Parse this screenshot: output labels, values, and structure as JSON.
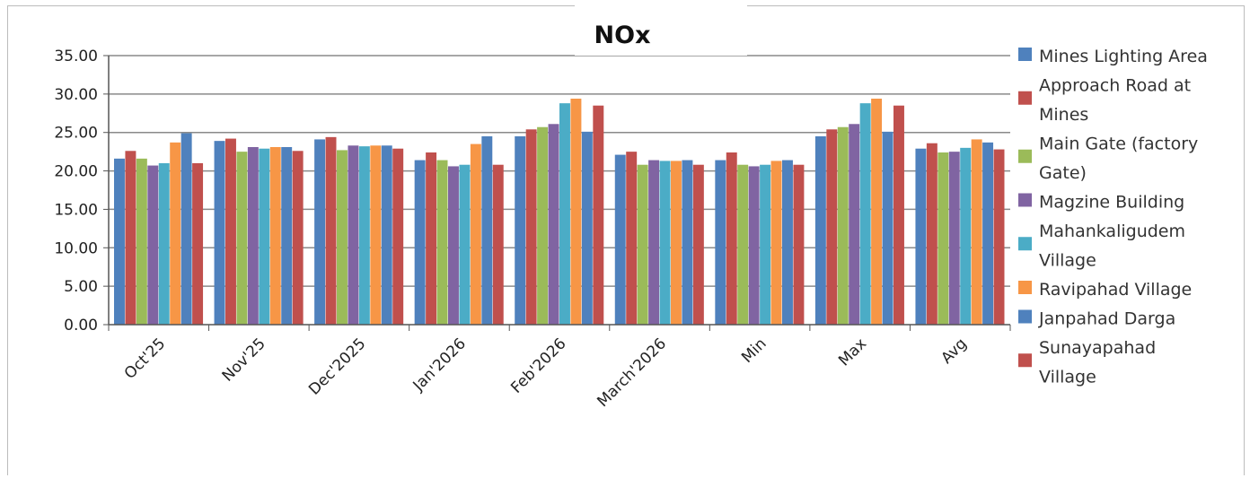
{
  "chart_data": {
    "type": "bar",
    "title": "NOx",
    "categories": [
      "Oct'25",
      "Nov'25",
      "Dec'2025",
      "Jan'2026",
      "Feb'2026",
      "March'2026",
      "Min",
      "Max",
      "Avg"
    ],
    "ylim": [
      0,
      35
    ],
    "yticks": [
      "0.00",
      "5.00",
      "10.00",
      "15.00",
      "20.00",
      "25.00",
      "30.00",
      "35.00"
    ],
    "grid": true,
    "legend_position": "right",
    "series": [
      {
        "name": "Mines Lighting Area",
        "color": "#4f81bd",
        "values": [
          21.6,
          23.9,
          24.1,
          21.4,
          24.5,
          22.1,
          21.4,
          24.5,
          22.9
        ]
      },
      {
        "name": "Approach Road at Mines",
        "color": "#c0504d",
        "values": [
          22.6,
          24.2,
          24.4,
          22.4,
          25.4,
          22.5,
          22.4,
          25.4,
          23.6
        ]
      },
      {
        "name": "Main Gate (factory Gate)",
        "color": "#9bbb59",
        "values": [
          21.6,
          22.5,
          22.7,
          21.4,
          25.7,
          20.8,
          20.8,
          25.7,
          22.4
        ]
      },
      {
        "name": "Magzine Building",
        "color": "#8064a2",
        "values": [
          20.7,
          23.1,
          23.3,
          20.6,
          26.1,
          21.4,
          20.6,
          26.1,
          22.5
        ]
      },
      {
        "name": "Mahankaligudem Village",
        "color": "#4bacc6",
        "values": [
          21.0,
          22.9,
          23.2,
          20.8,
          28.8,
          21.3,
          20.8,
          28.8,
          23.0
        ]
      },
      {
        "name": "Ravipahad Village",
        "color": "#f79646",
        "values": [
          23.7,
          23.1,
          23.3,
          23.5,
          29.4,
          21.3,
          21.3,
          29.4,
          24.1
        ]
      },
      {
        "name": "Janpahad Darga",
        "color": "#4f81bd",
        "values": [
          24.9,
          23.1,
          23.3,
          24.5,
          25.1,
          21.4,
          21.4,
          25.1,
          23.7
        ]
      },
      {
        "name": "Sunayapahad Village",
        "color": "#c0504d",
        "values": [
          21.0,
          22.6,
          22.9,
          20.8,
          28.5,
          20.8,
          20.8,
          28.5,
          22.8
        ]
      }
    ]
  }
}
